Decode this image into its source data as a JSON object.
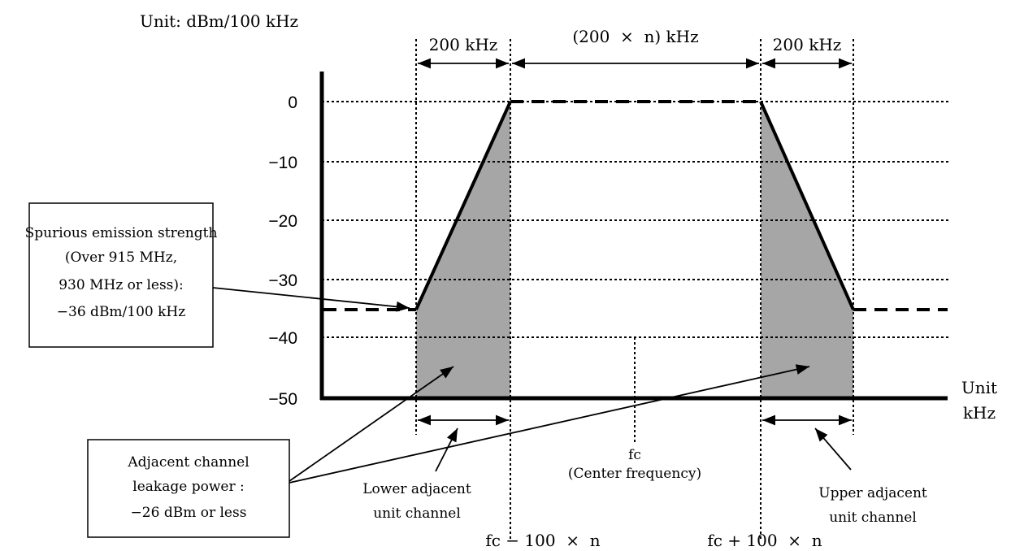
{
  "unit_label": "Unit: dBm/100 kHz",
  "y_ticks": [
    "0",
    "−10",
    "−20",
    "−30",
    "−40",
    "−50"
  ],
  "x_unit": {
    "line1": "Unit",
    "line2": "kHz"
  },
  "spans": {
    "left": "200 kHz",
    "middle": "(200  ×  n) kHz",
    "right": "200 kHz"
  },
  "spurious_box": {
    "line1": "Spurious emission strength",
    "line2": "(Over 915 MHz,",
    "line3": "930 MHz or less):",
    "line4": "−36 dBm/100 kHz"
  },
  "aclr_box": {
    "line1": "Adjacent channel",
    "line2": "leakage power :",
    "line3": "−26 dBm or less"
  },
  "lower_channel": {
    "line1": "Lower adjacent",
    "line2": "unit channel"
  },
  "center": {
    "line1": "fc",
    "line2": "(Center frequency)"
  },
  "upper_channel": {
    "line1": "Upper adjacent",
    "line2": "unit channel"
  },
  "bottom_left": "fc − 100  ×  n",
  "bottom_right": "fc + 100  ×  n",
  "colors": {
    "fill": "#a6a6a6",
    "line": "#000000"
  }
}
